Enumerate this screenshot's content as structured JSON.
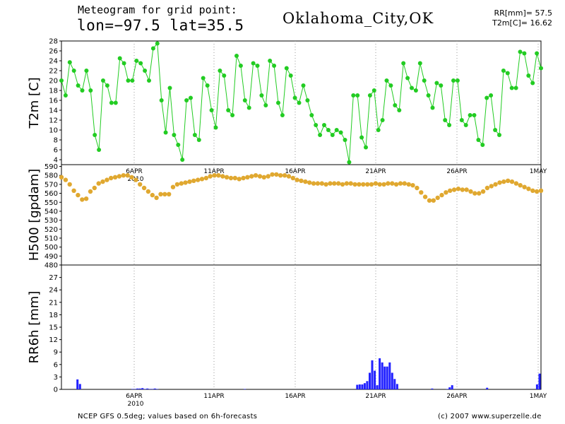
{
  "header": {
    "title": "Meteogram for grid point:",
    "coords": "lon=−97.5  lat=35.5",
    "location": "Oklahoma_City,OK",
    "stat_rr": "RR[mm]= 57.5",
    "stat_t2m": "T2m[C]= 16.62"
  },
  "footer": {
    "left": "NCEP GFS 0.5deg; values based on 6h-forecasts",
    "right": "(c) 2007 www.superzelle.de"
  },
  "colors": {
    "t2m": "#22cc22",
    "h500": "#e0a830",
    "rr6h": "#2222ff",
    "grid": "#999999"
  },
  "chart_data": [
    {
      "type": "line",
      "ylabel": "T2m [C]",
      "ylim": [
        3,
        28
      ],
      "yticks": [
        4,
        6,
        8,
        10,
        12,
        14,
        16,
        18,
        20,
        22,
        24,
        26,
        28
      ],
      "time_step_hours": 6,
      "x_range": [
        "1 APR 00Z",
        "1 MAY 12Z"
      ],
      "series": [
        {
          "values": [
            20,
            17,
            23.7,
            22,
            19,
            18,
            22,
            18,
            9,
            6,
            20,
            19,
            15.5,
            15.5,
            24.5,
            23.5,
            20,
            20,
            24,
            23.5,
            22,
            20,
            26.5,
            27.5,
            16,
            9.5,
            18.5,
            9,
            7,
            4,
            16,
            16.5,
            9,
            8,
            20.5,
            19,
            14,
            10.5,
            22,
            21,
            14,
            13,
            25,
            23,
            16,
            14.5,
            23.5,
            23,
            17,
            15,
            24,
            23,
            15.5,
            13,
            22.5,
            21,
            16.5,
            15.5,
            19,
            16,
            13,
            11,
            9,
            11,
            10,
            9,
            10,
            9.5,
            8,
            3.5,
            17,
            17,
            8.5,
            6.5,
            17,
            18,
            10,
            12,
            20,
            19,
            15,
            14,
            23.5,
            20.5,
            18.5,
            18,
            23.5,
            20,
            17,
            14.5,
            19.5,
            19,
            12,
            11,
            20,
            20,
            12,
            11,
            13,
            13,
            8,
            7,
            16.5,
            17,
            10,
            9,
            22,
            21.5,
            18.5,
            18.5,
            25.8,
            25.5,
            21,
            19.5,
            25.5,
            22.5
          ]
        }
      ],
      "x_tick_labels": [
        "6APR",
        "11APR",
        "16APR",
        "21APR",
        "26APR",
        "1MAY"
      ],
      "year_label": "2010"
    },
    {
      "type": "line",
      "ylabel": "H500 [gpdam]",
      "ylim": [
        480,
        592
      ],
      "yticks": [
        480,
        490,
        500,
        510,
        520,
        530,
        540,
        550,
        560,
        570,
        580,
        590
      ],
      "series": [
        {
          "values": [
            578,
            575,
            570,
            563,
            558,
            553,
            554,
            562,
            566,
            571,
            573,
            575,
            577,
            578,
            579,
            580,
            580,
            578,
            575,
            570,
            566,
            562,
            558,
            555,
            559,
            559,
            559,
            567,
            570,
            571,
            572,
            573,
            574,
            575,
            576,
            577,
            579,
            580,
            580,
            579,
            578,
            577,
            577,
            576,
            577,
            578,
            579,
            580,
            579,
            578,
            579,
            581,
            581,
            580,
            580,
            579,
            577,
            575,
            574,
            573,
            572,
            571,
            571,
            571,
            570,
            571,
            571,
            571,
            570,
            571,
            571,
            570,
            570,
            570,
            570,
            570,
            571,
            570,
            570,
            571,
            571,
            570,
            571,
            571,
            570,
            569,
            566,
            561,
            556,
            552,
            552,
            555,
            558,
            561,
            563,
            564,
            565,
            564,
            564,
            562,
            560,
            560,
            562,
            566,
            568,
            570,
            572,
            573,
            574,
            573,
            571,
            569,
            567,
            565,
            563,
            562,
            563
          ]
        }
      ]
    },
    {
      "type": "bar",
      "ylabel": "RR6h [mm]",
      "ylim": [
        0,
        30
      ],
      "yticks": [
        0,
        3,
        6,
        9,
        12,
        15,
        18,
        21,
        24,
        27
      ],
      "series": [
        {
          "values": [
            0,
            0,
            0,
            0,
            0,
            0,
            2.4,
            1.3,
            0,
            0,
            0,
            0,
            0,
            0,
            0,
            0,
            0,
            0,
            0,
            0,
            0,
            0,
            0,
            0,
            0,
            0,
            0,
            0,
            0.1,
            0.1,
            0.2,
            0.2,
            0.3,
            0.1,
            0.2,
            0.1,
            0.1,
            0.2,
            0.1,
            0,
            0,
            0,
            0,
            0,
            0,
            0,
            0,
            0,
            0,
            0,
            0,
            0,
            0,
            0,
            0,
            0,
            0,
            0,
            0,
            0,
            0,
            0,
            0,
            0,
            0,
            0,
            0,
            0,
            0,
            0,
            0,
            0,
            0,
            0.1,
            0,
            0,
            0,
            0,
            0,
            0,
            0,
            0,
            0,
            0,
            0,
            0,
            0,
            0,
            0,
            0,
            0,
            0,
            0,
            0,
            0,
            0,
            0,
            0,
            0,
            0,
            0,
            0,
            0,
            0,
            0,
            0,
            0,
            0,
            0,
            0,
            0,
            0,
            0,
            0,
            0,
            0,
            0,
            0,
            1.1,
            1.2,
            1.2,
            1.5,
            2,
            4,
            7,
            4.5,
            1,
            7.5,
            6.5,
            5.5,
            5.5,
            6.5,
            4,
            2.5,
            1.3,
            0,
            0,
            0,
            0,
            0,
            0,
            0,
            0,
            0,
            0,
            0,
            0,
            0,
            0.2,
            0,
            0,
            0,
            0,
            0,
            0.1,
            0.5,
            1,
            0,
            0,
            0,
            0,
            0,
            0,
            0,
            0,
            0,
            0,
            0,
            0,
            0,
            0.4,
            0,
            0,
            0,
            0,
            0,
            0,
            0,
            0,
            0,
            0,
            0,
            0,
            0,
            0,
            0,
            0,
            0,
            0,
            0,
            1.2,
            3.8
          ]
        }
      ],
      "x_tick_labels": [
        "6APR",
        "11APR",
        "16APR",
        "21APR",
        "26APR",
        "1MAY"
      ],
      "year_label": "2010"
    }
  ]
}
